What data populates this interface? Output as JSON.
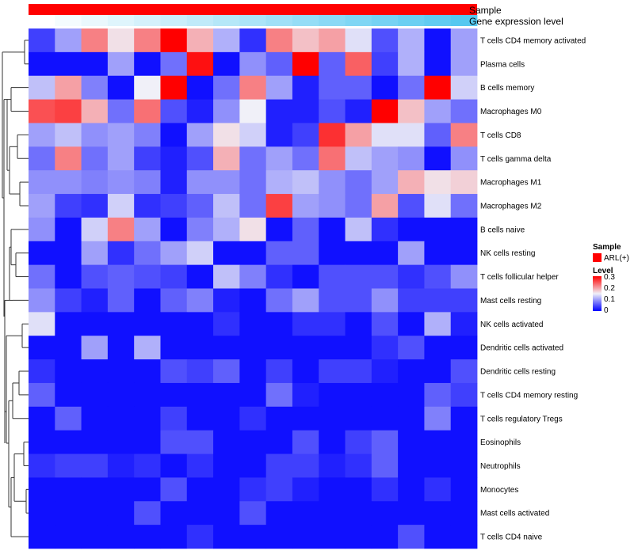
{
  "chart_data": {
    "type": "heatmap",
    "title": "",
    "annotations": [
      {
        "name": "Sample",
        "type": "solid",
        "color": "#ff0000"
      },
      {
        "name": "Gene expression level",
        "type": "gradient",
        "from": "#ffffff",
        "to": "#56c8f0"
      }
    ],
    "rows": [
      "T cells CD4 memory activated",
      "Plasma cells",
      "B cells memory",
      "Macrophages M0",
      "T cells CD8",
      "T cells gamma delta",
      "Macrophages M1",
      "Macrophages M2",
      "B cells naive",
      "NK cells resting",
      "T cells follicular helper",
      "Mast cells resting",
      "NK cells activated",
      "Dendritic cells activated",
      "Dendritic cells resting",
      "T cells CD4 memory resting",
      "T cells regulatory  Tregs",
      "Eosinophils",
      "Neutrophils",
      "Monocytes",
      "Mast cells activated",
      "T cells CD4 naive"
    ],
    "values": [
      [
        0.04,
        0.1,
        0.22,
        0.16,
        0.22,
        0.3,
        0.19,
        0.11,
        0.03,
        0.22,
        0.18,
        0.2,
        0.14,
        0.05,
        0.11,
        0.01,
        0.1
      ],
      [
        0.01,
        0.01,
        0.01,
        0.1,
        0.01,
        0.07,
        0.29,
        0.01,
        0.09,
        0.06,
        0.3,
        0.06,
        0.24,
        0.04,
        0.11,
        0.01,
        0.1
      ],
      [
        0.12,
        0.2,
        0.08,
        0.01,
        0.15,
        0.3,
        0.01,
        0.07,
        0.22,
        0.1,
        0.02,
        0.06,
        0.06,
        0.01,
        0.07,
        0.3,
        0.13
      ],
      [
        0.25,
        0.26,
        0.19,
        0.07,
        0.23,
        0.05,
        0.02,
        0.09,
        0.15,
        0.02,
        0.02,
        0.05,
        0.02,
        0.3,
        0.18,
        0.1,
        0.07
      ],
      [
        0.1,
        0.12,
        0.09,
        0.1,
        0.08,
        0.01,
        0.1,
        0.16,
        0.13,
        0.02,
        0.04,
        0.27,
        0.2,
        0.14,
        0.14,
        0.06,
        0.22
      ],
      [
        0.07,
        0.22,
        0.07,
        0.1,
        0.04,
        0.02,
        0.05,
        0.19,
        0.07,
        0.1,
        0.07,
        0.23,
        0.12,
        0.1,
        0.09,
        0.01,
        0.09
      ],
      [
        0.09,
        0.09,
        0.08,
        0.09,
        0.08,
        0.02,
        0.09,
        0.09,
        0.07,
        0.11,
        0.12,
        0.09,
        0.07,
        0.1,
        0.19,
        0.16,
        0.17
      ],
      [
        0.1,
        0.04,
        0.03,
        0.13,
        0.03,
        0.04,
        0.06,
        0.12,
        0.07,
        0.26,
        0.1,
        0.09,
        0.07,
        0.2,
        0.05,
        0.14,
        0.07
      ],
      [
        0.09,
        0.01,
        0.13,
        0.22,
        0.1,
        0.01,
        0.08,
        0.11,
        0.16,
        0.01,
        0.06,
        0.01,
        0.12,
        0.03,
        0.01,
        0.01,
        0.01
      ],
      [
        0.01,
        0.01,
        0.1,
        0.03,
        0.07,
        0.1,
        0.13,
        0.01,
        0.01,
        0.06,
        0.06,
        0.01,
        0.01,
        0.01,
        0.1,
        0.01,
        0.01
      ],
      [
        0.07,
        0.01,
        0.05,
        0.06,
        0.05,
        0.04,
        0.01,
        0.12,
        0.08,
        0.03,
        0.01,
        0.05,
        0.05,
        0.05,
        0.03,
        0.05,
        0.09
      ],
      [
        0.09,
        0.04,
        0.02,
        0.06,
        0.01,
        0.06,
        0.08,
        0.02,
        0.01,
        0.07,
        0.1,
        0.05,
        0.05,
        0.09,
        0.04,
        0.04,
        0.04
      ],
      [
        0.14,
        0.01,
        0.01,
        0.01,
        0.01,
        0.01,
        0.01,
        0.03,
        0.01,
        0.01,
        0.03,
        0.03,
        0.01,
        0.05,
        0.01,
        0.11,
        0.02
      ],
      [
        0.01,
        0.01,
        0.1,
        0.01,
        0.11,
        0.01,
        0.01,
        0.01,
        0.01,
        0.01,
        0.01,
        0.01,
        0.01,
        0.03,
        0.05,
        0.01,
        0.01
      ],
      [
        0.03,
        0.01,
        0.01,
        0.01,
        0.01,
        0.05,
        0.04,
        0.06,
        0.01,
        0.04,
        0.01,
        0.04,
        0.04,
        0.02,
        0.01,
        0.01,
        0.05
      ],
      [
        0.06,
        0.01,
        0.01,
        0.01,
        0.01,
        0.01,
        0.01,
        0.01,
        0.01,
        0.07,
        0.02,
        0.01,
        0.01,
        0.01,
        0.01,
        0.06,
        0.04
      ],
      [
        0.01,
        0.06,
        0.01,
        0.01,
        0.01,
        0.04,
        0.01,
        0.01,
        0.03,
        0.01,
        0.01,
        0.01,
        0.01,
        0.01,
        0.01,
        0.08,
        0.01
      ],
      [
        0.01,
        0.01,
        0.01,
        0.01,
        0.01,
        0.05,
        0.05,
        0.01,
        0.01,
        0.01,
        0.05,
        0.01,
        0.04,
        0.06,
        0.01,
        0.01,
        0.01
      ],
      [
        0.03,
        0.04,
        0.04,
        0.02,
        0.03,
        0.01,
        0.03,
        0.01,
        0.01,
        0.04,
        0.04,
        0.02,
        0.03,
        0.06,
        0.01,
        0.01,
        0.01
      ],
      [
        0.01,
        0.01,
        0.01,
        0.01,
        0.01,
        0.05,
        0.01,
        0.01,
        0.03,
        0.04,
        0.02,
        0.01,
        0.01,
        0.03,
        0.01,
        0.03,
        0.01
      ],
      [
        0.01,
        0.01,
        0.01,
        0.01,
        0.05,
        0.01,
        0.01,
        0.01,
        0.05,
        0.01,
        0.01,
        0.01,
        0.01,
        0.01,
        0.01,
        0.01,
        0.01
      ],
      [
        0.01,
        0.01,
        0.01,
        0.01,
        0.01,
        0.01,
        0.03,
        0.01,
        0.01,
        0.01,
        0.01,
        0.01,
        0.01,
        0.01,
        0.05,
        0.01,
        0.01
      ]
    ],
    "color_scale": {
      "min": 0,
      "max": 0.3,
      "low": "#0000ff",
      "mid": "#f0f0f8",
      "high": "#ff0000",
      "mid_value": 0.15
    },
    "legends": [
      {
        "title": "Sample",
        "items": [
          {
            "label": "ARL(+)",
            "color": "#ff0000"
          }
        ]
      },
      {
        "title": "Level",
        "ticks": [
          "0.3",
          "0.2",
          "0.1",
          "0"
        ],
        "tick_values": [
          0.3,
          0.2,
          0.1,
          0
        ]
      }
    ]
  }
}
